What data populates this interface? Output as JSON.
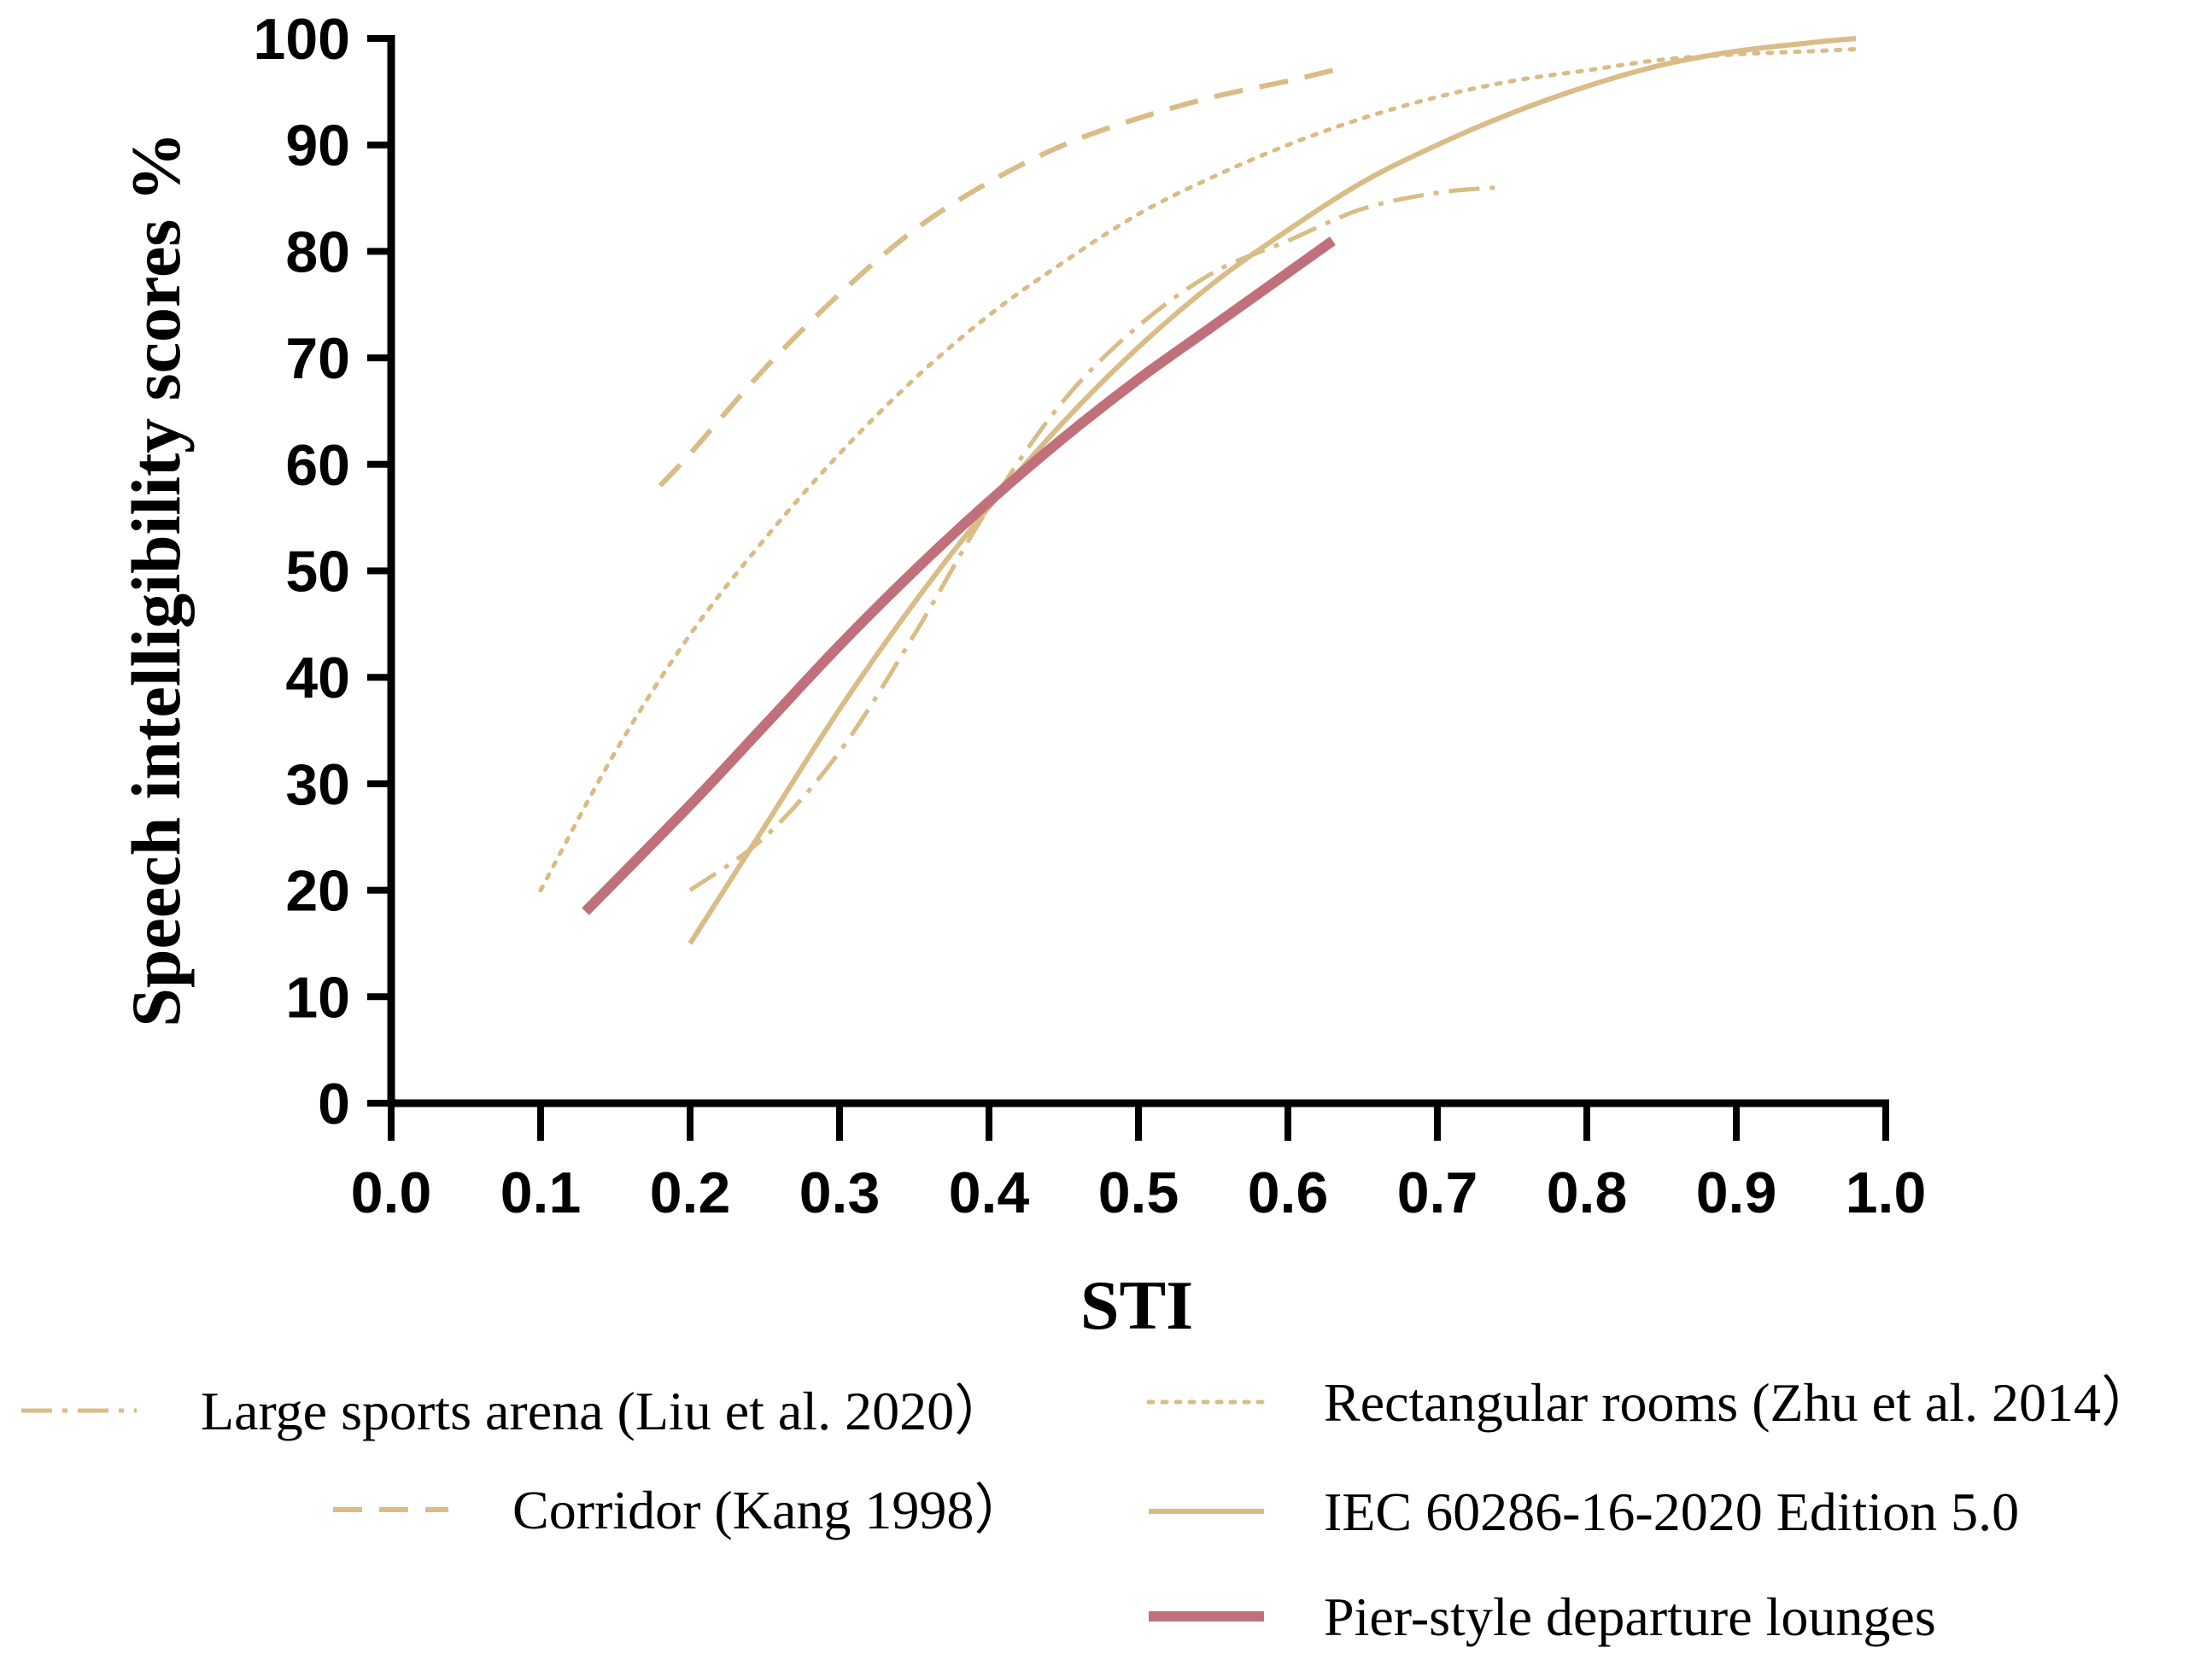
{
  "chart_data": {
    "type": "line",
    "title": "",
    "xlabel": "STI",
    "ylabel": "Speech intelligibility scores %",
    "xlim": [
      0,
      1.0
    ],
    "ylim": [
      0,
      100
    ],
    "xticks": [
      "0.0",
      "0.1",
      "0.2",
      "0.3",
      "0.4",
      "0.5",
      "0.6",
      "0.7",
      "0.8",
      "0.9",
      "1.0"
    ],
    "yticks": [
      "0",
      "10",
      "20",
      "30",
      "40",
      "50",
      "60",
      "70",
      "80",
      "90",
      "100"
    ],
    "grid": false,
    "legend_position": "bottom",
    "series": [
      {
        "id": "sports",
        "name": "Large sports arena (Liu et al. 2020）",
        "style": "dashdot",
        "color": "#D9BC86",
        "x": [
          0.2,
          0.25,
          0.3,
          0.35,
          0.4,
          0.45,
          0.5,
          0.55,
          0.6,
          0.65,
          0.7,
          0.74
        ],
        "y": [
          20,
          25,
          33,
          44,
          56,
          66,
          73,
          78,
          81,
          84,
          85.5,
          86
        ]
      },
      {
        "id": "corridor",
        "name": "Corridor (Kang 1998）",
        "style": "dashed",
        "color": "#D9BC86",
        "x": [
          0.18,
          0.2,
          0.25,
          0.3,
          0.35,
          0.4,
          0.45,
          0.5,
          0.55,
          0.6,
          0.63
        ],
        "y": [
          58,
          61,
          69,
          76,
          82,
          86.5,
          90,
          92.5,
          94.5,
          96,
          97
        ]
      },
      {
        "id": "rectangular",
        "name": "Rectangular rooms (Zhu et al. 2014）",
        "style": "dotted",
        "color": "#D9BC86",
        "x": [
          0.1,
          0.15,
          0.2,
          0.25,
          0.3,
          0.35,
          0.4,
          0.45,
          0.5,
          0.55,
          0.6,
          0.65,
          0.7,
          0.75,
          0.8,
          0.85,
          0.9,
          0.95,
          0.98
        ],
        "y": [
          20,
          33,
          44,
          53,
          61,
          68,
          74,
          79,
          83.5,
          87,
          90,
          92.5,
          94.5,
          96,
          97,
          98,
          98.5,
          98.8,
          99
        ]
      },
      {
        "id": "iec",
        "name": "IEC 60286-16-2020 Edition 5.0",
        "style": "solid",
        "color": "#D9BC86",
        "x": [
          0.2,
          0.25,
          0.3,
          0.35,
          0.4,
          0.45,
          0.5,
          0.55,
          0.6,
          0.65,
          0.7,
          0.75,
          0.8,
          0.85,
          0.9,
          0.95,
          0.98
        ],
        "y": [
          15,
          26,
          37,
          47,
          56,
          64,
          71,
          77,
          82,
          86.5,
          90,
          93,
          95.5,
          97.5,
          98.8,
          99.6,
          100
        ]
      },
      {
        "id": "pier",
        "name": "Pier-style departure lounges",
        "style": "solid-thick",
        "color": "#C0707A",
        "x": [
          0.13,
          0.2,
          0.25,
          0.3,
          0.35,
          0.4,
          0.45,
          0.5,
          0.55,
          0.6,
          0.63
        ],
        "y": [
          18,
          28,
          35.5,
          43,
          50,
          56.5,
          62.5,
          68,
          73,
          78,
          81
        ]
      }
    ]
  }
}
